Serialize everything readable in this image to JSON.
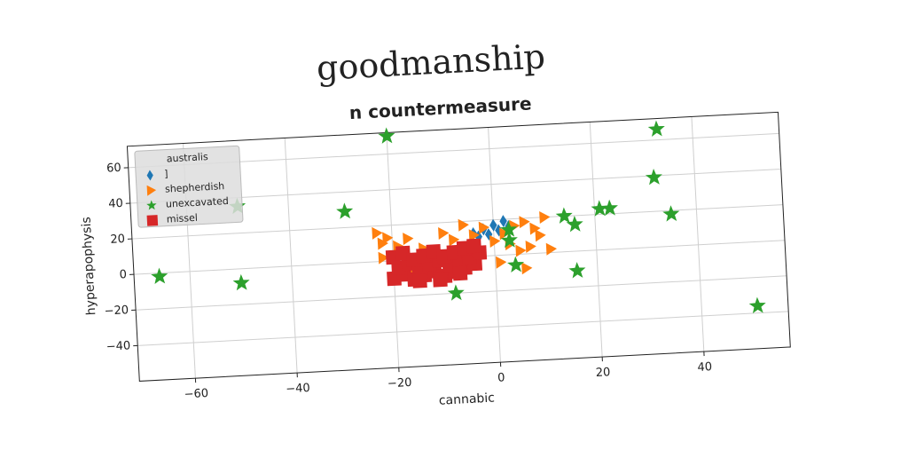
{
  "chart_data": {
    "type": "scatter",
    "title": "goodmanship",
    "subtitle": "n countermeasure",
    "x_label": "cannabic",
    "y_label": "hyperapophysis",
    "legend_title": "australis",
    "legend_position": "upper left",
    "grid": true,
    "xlim": [
      -71,
      57
    ],
    "ylim": [
      -60,
      72
    ],
    "xticks": [
      {
        "value": -60,
        "label": "−60"
      },
      {
        "value": -40,
        "label": "−40"
      },
      {
        "value": -20,
        "label": "−20"
      },
      0,
      20,
      40
    ],
    "yticks": [
      {
        "value": -40,
        "label": "−40"
      },
      {
        "value": -20,
        "label": "−20"
      },
      0,
      20,
      40,
      60
    ],
    "series": [
      {
        "name": "]",
        "color": "#1f77b4",
        "marker": "diamond",
        "x": [
          -4,
          -2,
          0,
          2,
          -1,
          1,
          3,
          -3
        ],
        "y": [
          13,
          15,
          17,
          19,
          12,
          14,
          16,
          11
        ]
      },
      {
        "name": "shepherdish",
        "color": "#ff7f0e",
        "marker": "triangle",
        "x": [
          -23,
          -21,
          -22,
          -19,
          -17,
          -14,
          -10,
          -8,
          -6,
          -4,
          -2,
          0,
          2,
          4,
          6,
          8,
          10,
          9,
          7,
          5,
          3,
          1,
          -12,
          -16,
          -20,
          11,
          -7,
          -3,
          -22,
          6
        ],
        "y": [
          16,
          13,
          10,
          8,
          12,
          6,
          14,
          10,
          18,
          12,
          16,
          8,
          12,
          16,
          18,
          14,
          20,
          10,
          4,
          2,
          6,
          -4,
          -2,
          -6,
          -10,
          2,
          0,
          4,
          2,
          -8
        ],
        "value_labels": null
      },
      {
        "name": "unexcavated",
        "color": "#2ca02c",
        "marker": "star",
        "x": [
          -20,
          -50,
          -66,
          -50,
          -29,
          -8,
          33,
          32,
          35,
          51,
          14,
          16,
          16,
          21,
          23,
          3,
          3,
          4
        ],
        "y": [
          70,
          35,
          -2,
          -8,
          29,
          -20,
          66,
          39,
          18,
          -36,
          20,
          15,
          -11,
          23,
          23,
          14,
          8,
          -6
        ]
      },
      {
        "name": "missel",
        "color": "#d62728",
        "marker": "square",
        "x": [
          -20,
          -18,
          -16,
          -14,
          -12,
          -10,
          -8,
          -6,
          -4,
          -19,
          -17,
          -15,
          -13,
          -11,
          -9,
          -7,
          -5,
          -3,
          -20,
          -18,
          -16,
          -14,
          -12,
          -10,
          -8,
          -6,
          -4,
          -15,
          -11,
          -7
        ],
        "y": [
          -10,
          -8,
          -11,
          -9,
          -7,
          -10,
          -8,
          -6,
          -4,
          -4,
          -2,
          -5,
          -3,
          -1,
          -4,
          -2,
          0,
          2,
          2,
          4,
          0,
          2,
          4,
          1,
          3,
          5,
          6,
          -12,
          -12,
          -9
        ]
      }
    ]
  }
}
